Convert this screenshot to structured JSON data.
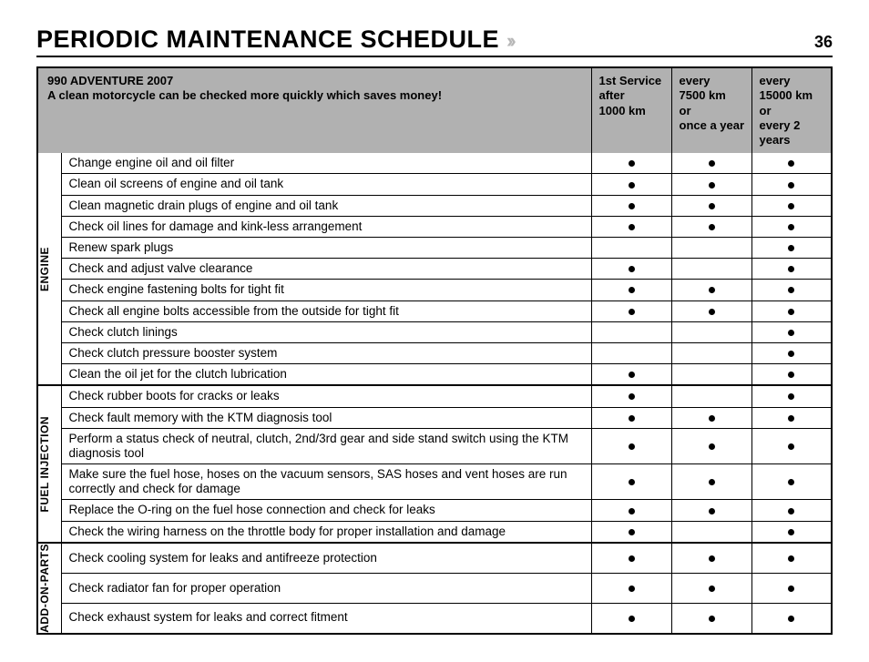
{
  "page": {
    "title": "PERIODIC MAINTENANCE SCHEDULE",
    "number": "36"
  },
  "header": {
    "model": "990 ADVENTURE 2007",
    "tagline": "A clean motorcycle can be checked more quickly which saves money!",
    "columns": [
      "1st Service\nafter\n1000 km",
      "every\n7500 km\nor\nonce a year",
      "every\n15000 km\nor\nevery 2 years"
    ]
  },
  "groups": [
    {
      "label": "ENGINE",
      "rows": [
        {
          "task": "Change engine oil and oil filter",
          "checks": [
            true,
            true,
            true
          ]
        },
        {
          "task": "Clean oil screens of engine and oil tank",
          "checks": [
            true,
            true,
            true
          ]
        },
        {
          "task": "Clean magnetic drain plugs of engine and oil tank",
          "checks": [
            true,
            true,
            true
          ]
        },
        {
          "task": "Check oil lines for damage and kink-less arrangement",
          "checks": [
            true,
            true,
            true
          ]
        },
        {
          "task": "Renew spark plugs",
          "checks": [
            false,
            false,
            true
          ]
        },
        {
          "task": "Check and adjust valve clearance",
          "checks": [
            true,
            false,
            true
          ]
        },
        {
          "task": "Check engine fastening bolts for tight fit",
          "checks": [
            true,
            true,
            true
          ]
        },
        {
          "task": "Check all engine bolts accessible from the outside for tight fit",
          "checks": [
            true,
            true,
            true
          ]
        },
        {
          "task": "Check clutch linings",
          "checks": [
            false,
            false,
            true
          ]
        },
        {
          "task": "Check clutch pressure booster system",
          "checks": [
            false,
            false,
            true
          ]
        },
        {
          "task": "Clean the oil jet for the clutch lubrication",
          "checks": [
            true,
            false,
            true
          ]
        }
      ]
    },
    {
      "label": "FUEL INJECTION",
      "rows": [
        {
          "task": "Check rubber boots for cracks or leaks",
          "checks": [
            true,
            false,
            true
          ]
        },
        {
          "task": "Check fault memory with the KTM diagnosis tool",
          "checks": [
            true,
            true,
            true
          ]
        },
        {
          "task": "Perform a status check of neutral, clutch, 2nd/3rd gear and side stand switch using the KTM diagnosis tool",
          "checks": [
            true,
            true,
            true
          ]
        },
        {
          "task": "Make sure the fuel hose, hoses on the vacuum sensors, SAS hoses and vent hoses are run correctly and check for damage",
          "checks": [
            true,
            true,
            true
          ]
        },
        {
          "task": "Replace the O-ring on the fuel hose connection and check for leaks",
          "checks": [
            true,
            true,
            true
          ]
        },
        {
          "task": "Check the wiring harness on the throttle body for proper installation and damage",
          "checks": [
            true,
            false,
            true
          ]
        }
      ]
    },
    {
      "label": "ADD-ON-PARTS",
      "rows": [
        {
          "task": "Check cooling system for leaks and antifreeze protection",
          "checks": [
            true,
            true,
            true
          ]
        },
        {
          "task": "Check radiator fan for proper operation",
          "checks": [
            true,
            true,
            true
          ]
        },
        {
          "task": "Check exhaust system for leaks and correct fitment",
          "checks": [
            true,
            true,
            true
          ]
        }
      ]
    }
  ],
  "style": {
    "header_bg": "#b1b1b1",
    "border_color": "#000000",
    "dot_color": "#000000",
    "page_bg": "#ffffff"
  }
}
